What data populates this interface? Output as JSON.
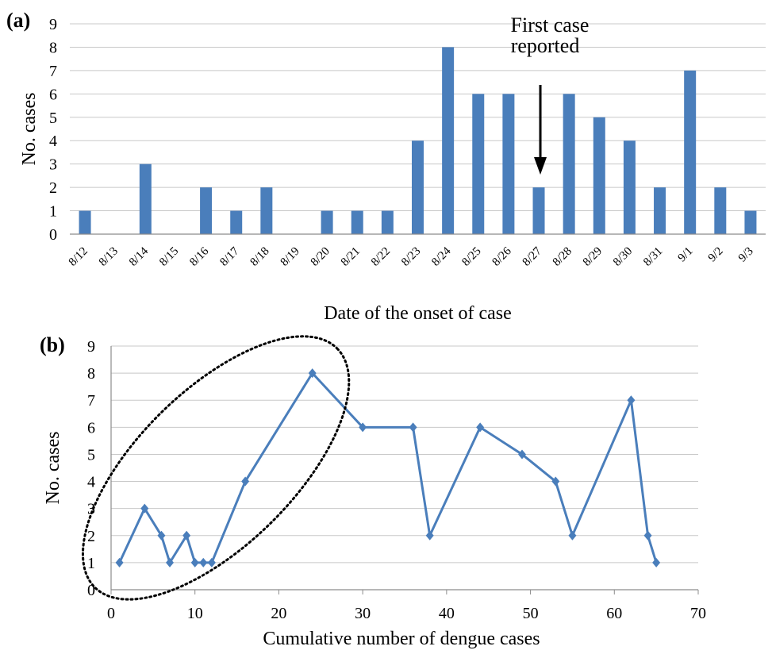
{
  "panels": {
    "a": {
      "label": "(a)"
    },
    "b": {
      "label": "(b)"
    }
  },
  "colors": {
    "series": "#4a7ebb",
    "grid": "#c8c8c8",
    "axis": "#8c8c8c",
    "text": "#000000"
  },
  "chart_data": [
    {
      "type": "bar",
      "categories": [
        "8/12",
        "8/13",
        "8/14",
        "8/15",
        "8/16",
        "8/17",
        "8/18",
        "8/19",
        "8/20",
        "8/21",
        "8/22",
        "8/23",
        "8/24",
        "8/25",
        "8/26",
        "8/27",
        "8/28",
        "8/29",
        "8/30",
        "8/31",
        "9/1",
        "9/2",
        "9/3"
      ],
      "values": [
        1,
        0,
        3,
        0,
        2,
        1,
        2,
        0,
        1,
        1,
        1,
        4,
        8,
        6,
        6,
        2,
        6,
        5,
        4,
        2,
        7,
        2,
        1
      ],
      "xlabel": "Date of the onset of case",
      "ylabel": "No. cases",
      "ylim": [
        0,
        9
      ],
      "yticks": [
        0,
        1,
        2,
        3,
        4,
        5,
        6,
        7,
        8,
        9
      ],
      "grid": true,
      "annotation": {
        "text_lines": [
          "First case",
          "reported"
        ],
        "category": "8/27",
        "arrow": "down"
      }
    },
    {
      "type": "line",
      "x": [
        1,
        4,
        6,
        7,
        9,
        10,
        11,
        12,
        16,
        24,
        30,
        36,
        38,
        44,
        49,
        53,
        55,
        62,
        64,
        65
      ],
      "y": [
        1,
        3,
        2,
        1,
        2,
        1,
        1,
        1,
        4,
        8,
        6,
        6,
        2,
        6,
        5,
        4,
        2,
        7,
        2,
        1
      ],
      "marker": "diamond",
      "xlabel": "Cumulative number of dengue cases",
      "ylabel": "No. cases",
      "xlim": [
        0,
        70
      ],
      "ylim": [
        0,
        9
      ],
      "xticks": [
        0,
        10,
        20,
        30,
        40,
        50,
        60,
        70
      ],
      "yticks": [
        0,
        1,
        2,
        3,
        4,
        5,
        6,
        7,
        8,
        9
      ],
      "grid": true,
      "highlight": {
        "shape": "dotted-ellipse",
        "covers_x": [
          1,
          24
        ]
      }
    }
  ]
}
